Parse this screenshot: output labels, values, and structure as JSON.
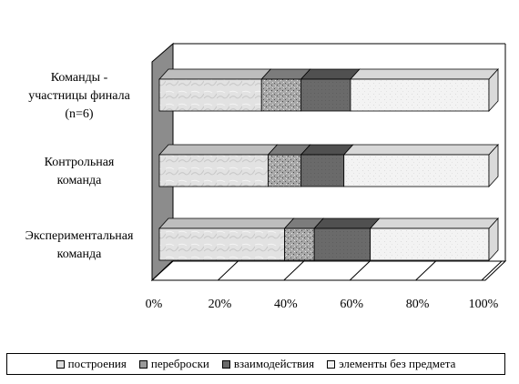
{
  "chart_data": {
    "type": "bar",
    "orientation": "horizontal",
    "stacked": "percent",
    "three_d": true,
    "categories": [
      "Команды - участницы финала (n=6)",
      "Контрольная команда",
      "Экспериментальная команда"
    ],
    "category_lines": [
      [
        "Команды -",
        "участницы финала",
        "(n=6)"
      ],
      [
        "Контрольная",
        "команда"
      ],
      [
        "Экспериментальная",
        "команда"
      ]
    ],
    "series": [
      {
        "name": "построения",
        "values": [
          31,
          33,
          38
        ],
        "color": "#dcdcdc"
      },
      {
        "name": "переброски",
        "values": [
          12,
          10,
          9
        ],
        "color": "#9a9a9a"
      },
      {
        "name": "взаимодействия",
        "values": [
          15,
          13,
          17
        ],
        "color": "#6e6e6e"
      },
      {
        "name": "элементы без предмета",
        "values": [
          42,
          44,
          36
        ],
        "color": "#f2f2f2"
      }
    ],
    "xticks": [
      "0%",
      "20%",
      "40%",
      "60%",
      "80%",
      "100%"
    ],
    "xlim": [
      0,
      100
    ],
    "legend_position": "bottom",
    "grid": false
  }
}
